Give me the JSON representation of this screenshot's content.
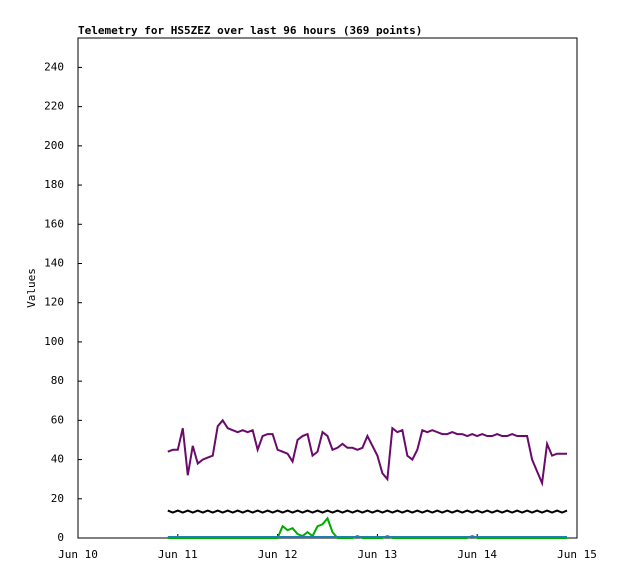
{
  "chart_data": {
    "type": "line",
    "title": "Telemetry for HS5ZEZ over last 96 hours (369 points)",
    "y_label": "Values",
    "x": [
      10.9,
      10.95,
      11,
      11.05,
      11.1,
      11.15,
      11.2,
      11.25,
      11.3,
      11.35,
      11.4,
      11.45,
      11.5,
      11.55,
      11.6,
      11.65,
      11.7,
      11.75,
      11.8,
      11.85,
      11.9,
      11.95,
      12,
      12.05,
      12.1,
      12.15,
      12.2,
      12.25,
      12.3,
      12.35,
      12.4,
      12.45,
      12.5,
      12.55,
      12.6,
      12.65,
      12.7,
      12.75,
      12.8,
      12.85,
      12.9,
      12.95,
      13,
      13.05,
      13.1,
      13.15,
      13.2,
      13.25,
      13.3,
      13.35,
      13.4,
      13.45,
      13.5,
      13.55,
      13.6,
      13.65,
      13.7,
      13.75,
      13.8,
      13.85,
      13.9,
      13.95,
      14,
      14.05,
      14.1,
      14.15,
      14.2,
      14.25,
      14.3,
      14.35,
      14.4,
      14.45,
      14.5,
      14.55,
      14.6,
      14.65,
      14.7,
      14.75,
      14.8,
      14.85,
      14.9
    ],
    "series": [
      {
        "color": "#6a0a6a",
        "values": [
          44,
          45,
          45,
          56,
          32,
          47,
          38,
          40,
          41,
          42,
          57,
          60,
          56,
          55,
          54,
          55,
          54,
          55,
          45,
          52,
          53,
          53,
          45,
          44,
          43,
          39,
          50,
          52,
          53,
          42,
          44,
          54,
          52,
          45,
          46,
          48,
          46,
          46,
          45,
          46,
          52,
          47,
          42,
          33,
          30,
          56,
          54,
          55,
          42,
          40,
          45,
          55,
          54,
          55,
          54,
          53,
          53,
          54,
          53,
          53,
          52,
          53,
          52,
          53,
          52,
          52,
          53,
          52,
          52,
          53,
          52,
          52,
          52,
          40,
          34,
          28,
          48,
          42,
          43,
          43,
          43
        ]
      },
      {
        "color": "#000000",
        "values": [
          14,
          13,
          14,
          13,
          14,
          13,
          14,
          13,
          14,
          13,
          14,
          13,
          14,
          13,
          14,
          13,
          14,
          13,
          14,
          13,
          14,
          13,
          14,
          13,
          14,
          13,
          14,
          13,
          14,
          13,
          14,
          13,
          14,
          13,
          14,
          13,
          14,
          13,
          14,
          13,
          14,
          13,
          14,
          13,
          14,
          13,
          14,
          13,
          14,
          13,
          14,
          13,
          14,
          13,
          14,
          13,
          14,
          13,
          14,
          13,
          14,
          13,
          14,
          13,
          14,
          13,
          14,
          13,
          14,
          13,
          14,
          13,
          14,
          13,
          14,
          13,
          14,
          13,
          14,
          13,
          14
        ]
      },
      {
        "color": "#00aa00",
        "values": [
          0,
          0,
          0,
          0,
          0,
          0,
          0,
          0,
          0,
          0,
          0,
          0,
          0,
          0,
          0,
          0,
          0,
          0,
          0,
          0,
          0,
          0,
          0,
          6,
          4,
          5,
          2,
          1,
          3,
          1,
          6,
          7,
          10,
          3,
          0,
          0,
          0,
          0,
          1,
          0,
          0,
          0,
          0,
          0,
          1,
          0,
          0,
          0,
          0,
          0,
          0,
          0,
          0,
          0,
          0,
          0,
          0,
          0,
          0,
          0,
          0,
          1,
          0,
          0,
          0,
          0,
          0,
          0,
          0,
          0,
          0,
          0,
          0,
          0,
          0,
          0,
          0,
          0,
          0,
          0,
          0
        ]
      },
      {
        "color": "#1f7fb4",
        "values": [
          0.5,
          0.5,
          0.5,
          0.5,
          0.5,
          0.5,
          0.5,
          0.5,
          0.5,
          0.5,
          0.5,
          0.5,
          0.5,
          0.5,
          0.5,
          0.5,
          0.5,
          0.5,
          0.5,
          0.5,
          0.5,
          0.5,
          0.5,
          0.5,
          0.5,
          0.5,
          0.5,
          0.5,
          0.5,
          0.5,
          0.5,
          0.5,
          0.5,
          0.5,
          0.5,
          0.5,
          0.5,
          0.5,
          0.5,
          0.5,
          0.5,
          0.5,
          0.5,
          0.5,
          0.5,
          0.5,
          0.5,
          0.5,
          0.5,
          0.5,
          0.5,
          0.5,
          0.5,
          0.5,
          0.5,
          0.5,
          0.5,
          0.5,
          0.5,
          0.5,
          0.5,
          0.5,
          0.5,
          0.5,
          0.5,
          0.5,
          0.5,
          0.5,
          0.5,
          0.5,
          0.5,
          0.5,
          0.5,
          0.5,
          0.5,
          0.5,
          0.5,
          0.5,
          0.5,
          0.5,
          0.5
        ]
      }
    ],
    "xlim": [
      10,
      15
    ],
    "xticks": [
      {
        "value": 10,
        "label": "Jun 10"
      },
      {
        "value": 11,
        "label": "Jun 11"
      },
      {
        "value": 12,
        "label": "Jun 12"
      },
      {
        "value": 13,
        "label": "Jun 13"
      },
      {
        "value": 14,
        "label": "Jun 14"
      },
      {
        "value": 15,
        "label": "Jun 15"
      }
    ],
    "ylim": [
      0,
      255
    ],
    "yticks": [
      0,
      20,
      40,
      60,
      80,
      100,
      120,
      140,
      160,
      180,
      200,
      220,
      240
    ]
  }
}
